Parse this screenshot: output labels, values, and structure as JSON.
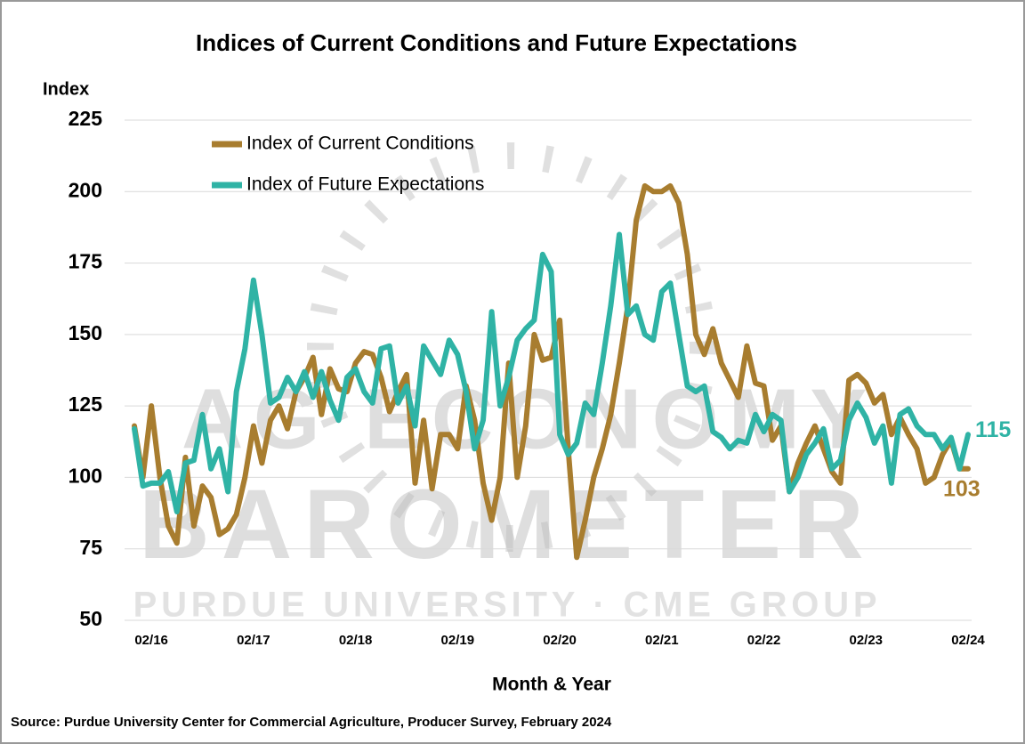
{
  "chart_data": {
    "type": "line",
    "title": "Indices of Current Conditions and Future Expectations",
    "y_label": "Index",
    "x_label": "Month & Year",
    "source": "Source: Purdue University Center for Commercial Agriculture, Producer Survey, February 2024",
    "watermark": [
      "AG ECONOMY",
      "BAROMETER",
      "PURDUE UNIVERSITY · CME GROUP"
    ],
    "categories": [
      null,
      null,
      "02/16",
      null,
      null,
      null,
      null,
      null,
      null,
      null,
      null,
      null,
      null,
      null,
      "02/17",
      null,
      null,
      null,
      null,
      null,
      null,
      null,
      null,
      null,
      null,
      null,
      "02/18",
      null,
      null,
      null,
      null,
      null,
      null,
      null,
      null,
      null,
      null,
      null,
      "02/19",
      null,
      null,
      null,
      null,
      null,
      null,
      null,
      null,
      null,
      null,
      null,
      "02/20",
      null,
      null,
      null,
      null,
      null,
      null,
      null,
      null,
      null,
      null,
      null,
      "02/21",
      null,
      null,
      null,
      null,
      null,
      null,
      null,
      null,
      null,
      null,
      null,
      "02/22",
      null,
      null,
      null,
      null,
      null,
      null,
      null,
      null,
      null,
      null,
      null,
      "02/23",
      null,
      null,
      null,
      null,
      null,
      null,
      null,
      null,
      null,
      null,
      null,
      "02/24"
    ],
    "series": [
      {
        "name": "Index of Current Conditions",
        "color": "#a87d2f",
        "values": [
          118,
          100,
          125,
          100,
          83,
          77,
          107,
          83,
          97,
          93,
          80,
          82,
          87,
          100,
          118,
          105,
          120,
          125,
          117,
          130,
          135,
          142,
          122,
          138,
          131,
          130,
          140,
          144,
          143,
          135,
          123,
          130,
          136,
          98,
          120,
          96,
          115,
          115,
          110,
          132,
          120,
          98,
          85,
          100,
          140,
          100,
          118,
          150,
          141,
          142,
          155,
          110,
          72,
          85,
          100,
          110,
          122,
          140,
          160,
          190,
          202,
          200,
          200,
          202,
          196,
          178,
          150,
          143,
          152,
          140,
          134,
          128,
          146,
          133,
          132,
          113,
          118,
          95,
          105,
          112,
          118,
          110,
          102,
          98,
          134,
          136,
          133,
          126,
          129,
          115,
          121,
          115,
          110,
          98,
          100,
          108,
          113,
          103,
          103
        ]
      },
      {
        "name": "Index of Future Expectations",
        "color": "#2fb3a5",
        "values": [
          117,
          97,
          98,
          98,
          102,
          88,
          105,
          106,
          122,
          103,
          110,
          95,
          130,
          145,
          169,
          150,
          126,
          128,
          135,
          130,
          137,
          128,
          137,
          127,
          120,
          135,
          138,
          130,
          126,
          145,
          146,
          126,
          132,
          118,
          146,
          141,
          136,
          148,
          143,
          130,
          110,
          120,
          158,
          125,
          135,
          148,
          152,
          155,
          178,
          172,
          115,
          108,
          112,
          126,
          122,
          140,
          160,
          185,
          157,
          160,
          150,
          148,
          165,
          168,
          150,
          132,
          130,
          132,
          116,
          114,
          110,
          113,
          112,
          122,
          116,
          122,
          120,
          95,
          100,
          108,
          112,
          117,
          103,
          106,
          120,
          126,
          121,
          112,
          118,
          98,
          122,
          124,
          118,
          115,
          115,
          110,
          114,
          103,
          115
        ]
      }
    ],
    "ylim": [
      50,
      225
    ],
    "yticks": [
      50,
      75,
      100,
      125,
      150,
      175,
      200,
      225
    ],
    "grid": true,
    "legend": "upper left"
  }
}
